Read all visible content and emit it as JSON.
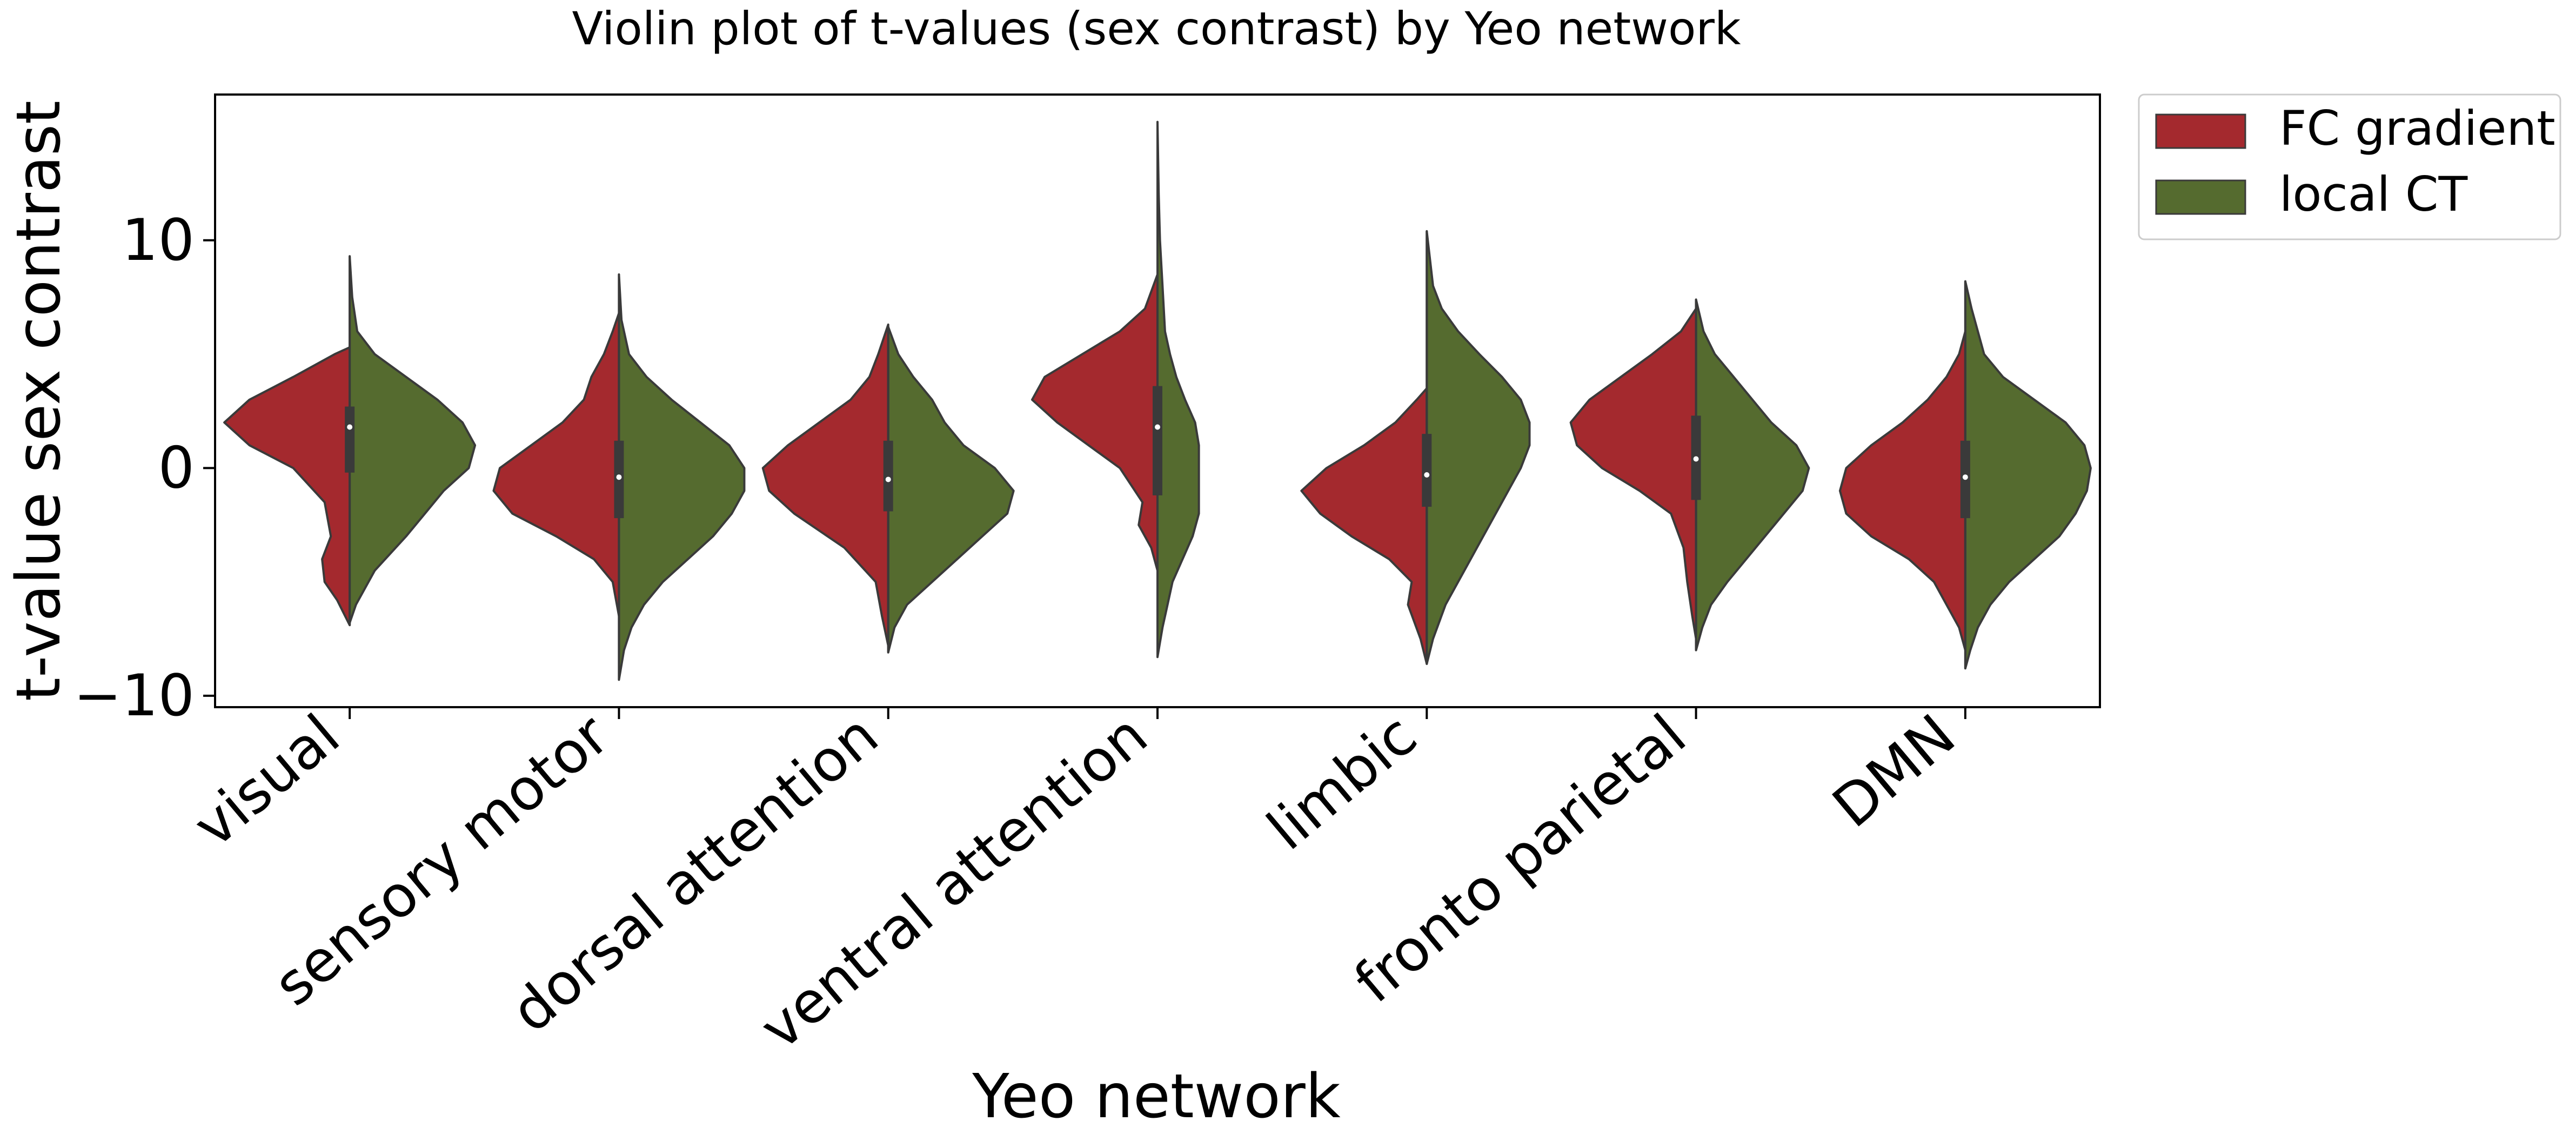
{
  "chart_data": {
    "type": "violin",
    "title": "Violin plot of t-values (sex contrast) by Yeo network",
    "xlabel": "Yeo network",
    "ylabel": "t-value sex contrast",
    "categories": [
      "visual",
      "sensory motor",
      "dorsal attention",
      "ventral attention",
      "limbic",
      "fronto parietal",
      "DMN"
    ],
    "ylim": [
      -10.5,
      16.4
    ],
    "yticks": [
      -10,
      0,
      10
    ],
    "ytick_labels": [
      "−10",
      "0",
      "10"
    ],
    "grid": false,
    "legend_position": "outside-top-right",
    "series": [
      {
        "name": "FC gradient",
        "color": "#a4292e",
        "side": "left",
        "violins": [
          {
            "min": -6.9,
            "max": 5.3,
            "density": [
              [
                -6.9,
                0.0
              ],
              [
                -5.8,
                0.1
              ],
              [
                -5.0,
                0.2
              ],
              [
                -4.0,
                0.22
              ],
              [
                -3.0,
                0.15
              ],
              [
                -1.5,
                0.2
              ],
              [
                0.0,
                0.45
              ],
              [
                1.0,
                0.8
              ],
              [
                2.0,
                1.0
              ],
              [
                3.0,
                0.8
              ],
              [
                4.0,
                0.45
              ],
              [
                5.0,
                0.12
              ],
              [
                5.3,
                0.0
              ]
            ]
          },
          {
            "min": -6.5,
            "max": 6.8,
            "density": [
              [
                -6.5,
                0.0
              ],
              [
                -5.0,
                0.05
              ],
              [
                -4.0,
                0.2
              ],
              [
                -3.0,
                0.5
              ],
              [
                -2.0,
                0.85
              ],
              [
                -1.0,
                1.0
              ],
              [
                0.0,
                0.95
              ],
              [
                1.0,
                0.7
              ],
              [
                2.0,
                0.45
              ],
              [
                3.0,
                0.28
              ],
              [
                4.0,
                0.22
              ],
              [
                5.0,
                0.12
              ],
              [
                6.0,
                0.05
              ],
              [
                6.8,
                0.0
              ]
            ]
          },
          {
            "min": -7.8,
            "max": 6.3,
            "density": [
              [
                -7.8,
                0.0
              ],
              [
                -6.5,
                0.05
              ],
              [
                -5.0,
                0.1
              ],
              [
                -3.5,
                0.35
              ],
              [
                -2.0,
                0.75
              ],
              [
                -1.0,
                0.95
              ],
              [
                0.0,
                1.0
              ],
              [
                1.0,
                0.8
              ],
              [
                2.0,
                0.55
              ],
              [
                3.0,
                0.3
              ],
              [
                4.0,
                0.15
              ],
              [
                5.0,
                0.08
              ],
              [
                6.3,
                0.0
              ]
            ]
          },
          {
            "min": -4.5,
            "max": 8.5,
            "density": [
              [
                -4.5,
                0.0
              ],
              [
                -3.5,
                0.05
              ],
              [
                -2.5,
                0.15
              ],
              [
                -1.5,
                0.12
              ],
              [
                0.0,
                0.3
              ],
              [
                1.0,
                0.55
              ],
              [
                2.0,
                0.8
              ],
              [
                3.0,
                1.0
              ],
              [
                4.0,
                0.9
              ],
              [
                5.0,
                0.6
              ],
              [
                6.0,
                0.3
              ],
              [
                7.0,
                0.1
              ],
              [
                8.5,
                0.0
              ]
            ]
          },
          {
            "min": -8.6,
            "max": 3.5,
            "density": [
              [
                -8.6,
                0.0
              ],
              [
                -7.5,
                0.05
              ],
              [
                -6.0,
                0.15
              ],
              [
                -5.0,
                0.12
              ],
              [
                -4.0,
                0.3
              ],
              [
                -3.0,
                0.6
              ],
              [
                -2.0,
                0.85
              ],
              [
                -1.0,
                1.0
              ],
              [
                0.0,
                0.8
              ],
              [
                1.0,
                0.5
              ],
              [
                2.0,
                0.25
              ],
              [
                3.0,
                0.08
              ],
              [
                3.5,
                0.0
              ]
            ]
          },
          {
            "min": -7.5,
            "max": 7.0,
            "density": [
              [
                -7.5,
                0.0
              ],
              [
                -6.5,
                0.03
              ],
              [
                -5.0,
                0.07
              ],
              [
                -3.5,
                0.1
              ],
              [
                -2.0,
                0.2
              ],
              [
                -1.0,
                0.45
              ],
              [
                0.0,
                0.75
              ],
              [
                1.0,
                0.95
              ],
              [
                2.0,
                1.0
              ],
              [
                3.0,
                0.85
              ],
              [
                4.0,
                0.6
              ],
              [
                5.0,
                0.35
              ],
              [
                6.0,
                0.12
              ],
              [
                7.0,
                0.0
              ]
            ]
          },
          {
            "min": -8.0,
            "max": 6.0,
            "density": [
              [
                -8.0,
                0.0
              ],
              [
                -7.0,
                0.05
              ],
              [
                -5.0,
                0.25
              ],
              [
                -4.0,
                0.45
              ],
              [
                -3.0,
                0.75
              ],
              [
                -2.0,
                0.95
              ],
              [
                -1.0,
                1.0
              ],
              [
                0.0,
                0.95
              ],
              [
                1.0,
                0.75
              ],
              [
                2.0,
                0.5
              ],
              [
                3.0,
                0.3
              ],
              [
                4.0,
                0.15
              ],
              [
                5.0,
                0.05
              ],
              [
                6.0,
                0.0
              ]
            ]
          }
        ]
      },
      {
        "name": "local CT",
        "color": "#556b2f",
        "side": "right",
        "violins": [
          {
            "min": -6.8,
            "max": 9.3,
            "density": [
              [
                -6.8,
                0.0
              ],
              [
                -6.0,
                0.05
              ],
              [
                -4.5,
                0.2
              ],
              [
                -3.0,
                0.45
              ],
              [
                -2.0,
                0.6
              ],
              [
                -1.0,
                0.75
              ],
              [
                0.0,
                0.95
              ],
              [
                1.0,
                1.0
              ],
              [
                2.0,
                0.9
              ],
              [
                3.0,
                0.7
              ],
              [
                4.0,
                0.45
              ],
              [
                5.0,
                0.2
              ],
              [
                6.0,
                0.06
              ],
              [
                7.5,
                0.02
              ],
              [
                9.3,
                0.0
              ]
            ]
          },
          {
            "min": -9.3,
            "max": 8.5,
            "density": [
              [
                -9.3,
                0.0
              ],
              [
                -8.0,
                0.04
              ],
              [
                -7.0,
                0.1
              ],
              [
                -6.0,
                0.2
              ],
              [
                -5.0,
                0.35
              ],
              [
                -4.0,
                0.55
              ],
              [
                -3.0,
                0.75
              ],
              [
                -2.0,
                0.9
              ],
              [
                -1.0,
                1.0
              ],
              [
                0.0,
                1.0
              ],
              [
                1.0,
                0.88
              ],
              [
                2.0,
                0.65
              ],
              [
                3.0,
                0.42
              ],
              [
                4.0,
                0.22
              ],
              [
                5.0,
                0.08
              ],
              [
                6.5,
                0.02
              ],
              [
                8.5,
                0.0
              ]
            ]
          },
          {
            "min": -8.1,
            "max": 6.2,
            "density": [
              [
                -8.1,
                0.0
              ],
              [
                -7.0,
                0.05
              ],
              [
                -6.0,
                0.15
              ],
              [
                -5.0,
                0.35
              ],
              [
                -4.0,
                0.55
              ],
              [
                -3.0,
                0.75
              ],
              [
                -2.0,
                0.95
              ],
              [
                -1.0,
                1.0
              ],
              [
                0.0,
                0.85
              ],
              [
                1.0,
                0.6
              ],
              [
                2.0,
                0.45
              ],
              [
                3.0,
                0.35
              ],
              [
                4.0,
                0.2
              ],
              [
                5.0,
                0.08
              ],
              [
                6.2,
                0.0
              ]
            ]
          },
          {
            "min": -8.3,
            "max": 15.2,
            "density": [
              [
                -8.3,
                0.0
              ],
              [
                -7.0,
                0.04
              ],
              [
                -6.0,
                0.08
              ],
              [
                -5.0,
                0.12
              ],
              [
                -4.0,
                0.2
              ],
              [
                -3.0,
                0.28
              ],
              [
                -2.0,
                0.33
              ],
              [
                -1.0,
                0.33
              ],
              [
                0.0,
                0.33
              ],
              [
                1.0,
                0.33
              ],
              [
                2.0,
                0.3
              ],
              [
                3.0,
                0.22
              ],
              [
                4.0,
                0.15
              ],
              [
                5.0,
                0.1
              ],
              [
                6.0,
                0.06
              ],
              [
                8.0,
                0.04
              ],
              [
                10.0,
                0.02
              ],
              [
                12.0,
                0.01
              ],
              [
                15.2,
                0.0
              ]
            ]
          },
          {
            "min": -8.6,
            "max": 10.4,
            "density": [
              [
                -8.6,
                0.0
              ],
              [
                -7.5,
                0.05
              ],
              [
                -6.0,
                0.15
              ],
              [
                -5.0,
                0.25
              ],
              [
                -4.0,
                0.35
              ],
              [
                -3.0,
                0.45
              ],
              [
                -2.0,
                0.55
              ],
              [
                -1.0,
                0.65
              ],
              [
                0.0,
                0.75
              ],
              [
                1.0,
                0.82
              ],
              [
                2.0,
                0.82
              ],
              [
                3.0,
                0.75
              ],
              [
                4.0,
                0.6
              ],
              [
                5.0,
                0.42
              ],
              [
                6.0,
                0.25
              ],
              [
                7.0,
                0.12
              ],
              [
                8.0,
                0.05
              ],
              [
                10.4,
                0.0
              ]
            ]
          },
          {
            "min": -8.0,
            "max": 7.4,
            "density": [
              [
                -8.0,
                0.0
              ],
              [
                -7.0,
                0.05
              ],
              [
                -6.0,
                0.12
              ],
              [
                -5.0,
                0.25
              ],
              [
                -4.0,
                0.4
              ],
              [
                -3.0,
                0.55
              ],
              [
                -2.0,
                0.7
              ],
              [
                -1.0,
                0.85
              ],
              [
                0.0,
                0.9
              ],
              [
                1.0,
                0.8
              ],
              [
                2.0,
                0.6
              ],
              [
                3.0,
                0.45
              ],
              [
                4.0,
                0.3
              ],
              [
                5.0,
                0.15
              ],
              [
                6.0,
                0.06
              ],
              [
                7.4,
                0.0
              ]
            ]
          },
          {
            "min": -8.8,
            "max": 8.2,
            "density": [
              [
                -8.8,
                0.0
              ],
              [
                -8.0,
                0.04
              ],
              [
                -7.0,
                0.1
              ],
              [
                -6.0,
                0.2
              ],
              [
                -5.0,
                0.35
              ],
              [
                -4.0,
                0.55
              ],
              [
                -3.0,
                0.75
              ],
              [
                -2.0,
                0.88
              ],
              [
                -1.0,
                0.97
              ],
              [
                0.0,
                1.0
              ],
              [
                1.0,
                0.95
              ],
              [
                2.0,
                0.8
              ],
              [
                3.0,
                0.55
              ],
              [
                4.0,
                0.3
              ],
              [
                5.0,
                0.15
              ],
              [
                6.0,
                0.1
              ],
              [
                7.0,
                0.05
              ],
              [
                8.2,
                0.0
              ]
            ]
          }
        ]
      }
    ],
    "boxes": [
      {
        "q1": -0.2,
        "q3": 2.7,
        "median": 1.8,
        "whisker_low": -6.9,
        "whisker_high": 9.3
      },
      {
        "q1": -2.2,
        "q3": 1.2,
        "median": -0.4,
        "whisker_low": -9.3,
        "whisker_high": 8.5
      },
      {
        "q1": -1.9,
        "q3": 1.2,
        "median": -0.5,
        "whisker_low": -8.1,
        "whisker_high": 6.2
      },
      {
        "q1": -1.2,
        "q3": 3.6,
        "median": 1.8,
        "whisker_low": -8.3,
        "whisker_high": 15.2
      },
      {
        "q1": -1.7,
        "q3": 1.5,
        "median": -0.3,
        "whisker_low": -8.6,
        "whisker_high": 10.4
      },
      {
        "q1": -1.4,
        "q3": 2.3,
        "median": 0.4,
        "whisker_low": -8.0,
        "whisker_high": 7.4
      },
      {
        "q1": -2.2,
        "q3": 1.2,
        "median": -0.4,
        "whisker_low": -8.8,
        "whisker_high": 8.2
      }
    ]
  }
}
